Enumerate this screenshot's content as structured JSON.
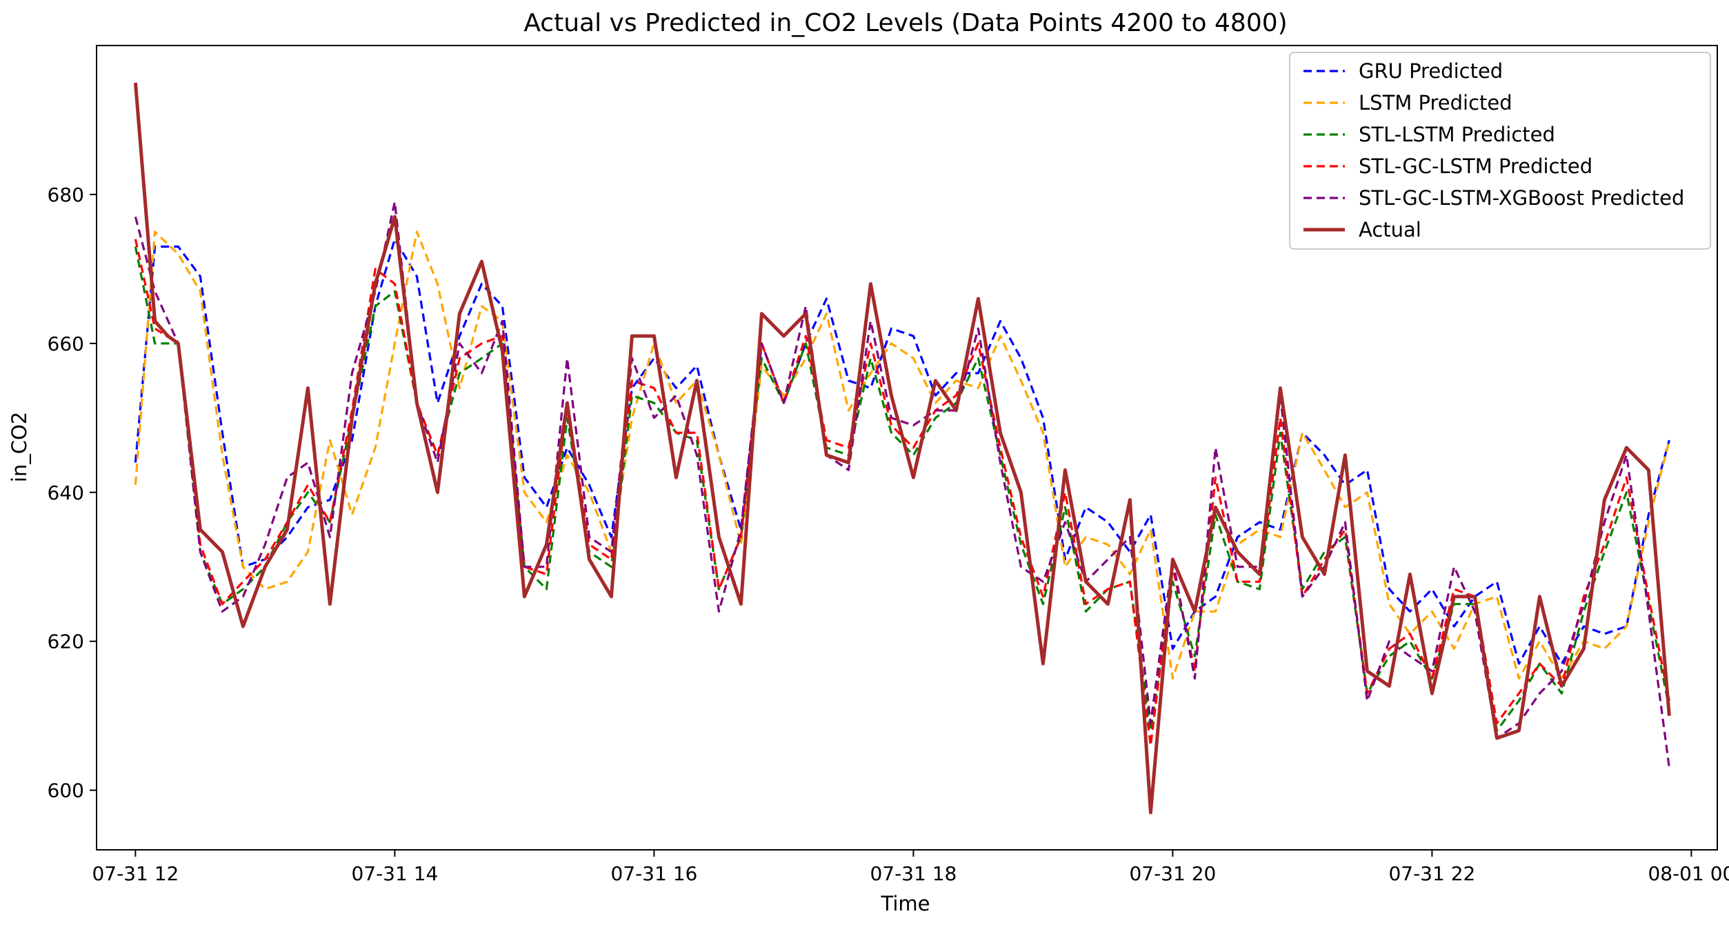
{
  "chart_data": {
    "type": "line",
    "title": "Actual vs Predicted in_CO2 Levels (Data Points 4200 to 4800)",
    "xlabel": "Time",
    "ylabel": "in_CO2",
    "xlim": [
      11.7,
      24.2
    ],
    "ylim": [
      592,
      700
    ],
    "x_ticks": [
      12,
      14,
      16,
      18,
      20,
      22,
      24
    ],
    "x_tick_labels": [
      "07-31 12",
      "07-31 14",
      "07-31 16",
      "07-31 18",
      "07-31 20",
      "07-31 22",
      "08-01 00"
    ],
    "y_ticks": [
      600,
      620,
      640,
      660,
      680
    ],
    "y_tick_labels": [
      "600",
      "620",
      "640",
      "660",
      "680"
    ],
    "grid": false,
    "legend_position": "top-right",
    "x_unit_note": "x values are hours on 2024-07-31 (24 = 08-01 00)",
    "series": [
      {
        "name": "GRU Predicted",
        "color": "#0000ff",
        "style": "dashed",
        "x": [
          12.0,
          12.15,
          12.33,
          12.5,
          12.67,
          12.83,
          13.0,
          13.17,
          13.33,
          13.5,
          13.67,
          13.85,
          14.0,
          14.17,
          14.33,
          14.5,
          14.67,
          14.83,
          15.0,
          15.17,
          15.33,
          15.5,
          15.67,
          15.83,
          16.0,
          16.17,
          16.33,
          16.5,
          16.67,
          16.83,
          17.0,
          17.17,
          17.33,
          17.5,
          17.67,
          17.83,
          18.0,
          18.17,
          18.33,
          18.5,
          18.67,
          18.83,
          19.0,
          19.17,
          19.33,
          19.5,
          19.67,
          19.83,
          20.0,
          20.17,
          20.33,
          20.5,
          20.67,
          20.83,
          21.0,
          21.17,
          21.33,
          21.5,
          21.67,
          21.83,
          22.0,
          22.17,
          22.33,
          22.5,
          22.67,
          22.83,
          23.0,
          23.17,
          23.33,
          23.5,
          23.67,
          23.83
        ],
        "y": [
          644,
          673,
          673,
          669,
          648,
          630,
          631,
          634,
          638,
          639,
          647,
          665,
          674,
          669,
          652,
          661,
          668,
          665,
          642,
          638,
          646,
          641,
          634,
          654,
          658,
          654,
          657,
          645,
          635,
          660,
          652,
          660,
          666,
          655,
          654,
          662,
          661,
          653,
          656,
          656,
          663,
          658,
          650,
          631,
          638,
          636,
          632,
          637,
          619,
          624,
          626,
          634,
          636,
          635,
          648,
          645,
          641,
          643,
          627,
          624,
          627,
          622,
          626,
          628,
          617,
          622,
          617,
          622,
          621,
          622,
          637,
          647
        ]
      },
      {
        "name": "LSTM Predicted",
        "color": "#ffa500",
        "style": "dashed",
        "x": [
          12.0,
          12.15,
          12.33,
          12.5,
          12.67,
          12.83,
          13.0,
          13.17,
          13.33,
          13.5,
          13.67,
          13.85,
          14.0,
          14.17,
          14.33,
          14.5,
          14.67,
          14.83,
          15.0,
          15.17,
          15.33,
          15.5,
          15.67,
          15.83,
          16.0,
          16.17,
          16.33,
          16.5,
          16.67,
          16.83,
          17.0,
          17.17,
          17.33,
          17.5,
          17.67,
          17.83,
          18.0,
          18.17,
          18.33,
          18.5,
          18.67,
          18.83,
          19.0,
          19.17,
          19.33,
          19.5,
          19.67,
          19.83,
          20.0,
          20.17,
          20.33,
          20.5,
          20.67,
          20.83,
          21.0,
          21.17,
          21.33,
          21.5,
          21.67,
          21.83,
          22.0,
          22.17,
          22.33,
          22.5,
          22.67,
          22.83,
          23.0,
          23.17,
          23.33,
          23.5,
          23.67,
          23.83
        ],
        "y": [
          641,
          675,
          672,
          667,
          645,
          630,
          627,
          628,
          632,
          647,
          637,
          646,
          660,
          675,
          668,
          654,
          665,
          663,
          640,
          636,
          645,
          640,
          632,
          650,
          660,
          652,
          655,
          645,
          633,
          657,
          653,
          658,
          664,
          651,
          656,
          660,
          658,
          652,
          655,
          654,
          661,
          655,
          648,
          630,
          634,
          633,
          629,
          635,
          615,
          624,
          624,
          633,
          635,
          634,
          648,
          643,
          638,
          640,
          625,
          621,
          624,
          619,
          625,
          626,
          615,
          620,
          615,
          620,
          619,
          622,
          636,
          647
        ]
      },
      {
        "name": "STL-LSTM Predicted",
        "color": "#008000",
        "style": "dashed",
        "x": [
          12.0,
          12.15,
          12.33,
          12.5,
          12.67,
          12.83,
          13.0,
          13.17,
          13.33,
          13.5,
          13.67,
          13.85,
          14.0,
          14.17,
          14.33,
          14.5,
          14.67,
          14.83,
          15.0,
          15.17,
          15.33,
          15.5,
          15.67,
          15.83,
          16.0,
          16.17,
          16.33,
          16.5,
          16.67,
          16.83,
          17.0,
          17.17,
          17.33,
          17.5,
          17.67,
          17.83,
          18.0,
          18.17,
          18.33,
          18.5,
          18.67,
          18.83,
          19.0,
          19.17,
          19.33,
          19.5,
          19.67,
          19.83,
          20.0,
          20.17,
          20.33,
          20.5,
          20.67,
          20.83,
          21.0,
          21.17,
          21.33,
          21.5,
          21.67,
          21.83,
          22.0,
          22.17,
          22.33,
          22.5,
          22.67,
          22.83,
          23.0,
          23.17,
          23.33,
          23.5,
          23.67,
          23.83
        ],
        "y": [
          673,
          660,
          660,
          632,
          625,
          627,
          630,
          636,
          640,
          636,
          650,
          665,
          667,
          652,
          645,
          656,
          658,
          660,
          630,
          627,
          650,
          632,
          630,
          653,
          652,
          648,
          647,
          627,
          634,
          658,
          652,
          660,
          646,
          645,
          658,
          648,
          645,
          650,
          652,
          658,
          645,
          633,
          625,
          638,
          624,
          627,
          628,
          608,
          628,
          618,
          637,
          628,
          627,
          648,
          627,
          632,
          634,
          613,
          618,
          620,
          615,
          625,
          625,
          608,
          612,
          617,
          613,
          624,
          632,
          640,
          625,
          611
        ]
      },
      {
        "name": "STL-GC-LSTM Predicted",
        "color": "#ff0000",
        "style": "dashed",
        "x": [
          12.0,
          12.15,
          12.33,
          12.5,
          12.67,
          12.83,
          13.0,
          13.17,
          13.33,
          13.5,
          13.67,
          13.85,
          14.0,
          14.17,
          14.33,
          14.5,
          14.67,
          14.83,
          15.0,
          15.17,
          15.33,
          15.5,
          15.67,
          15.83,
          16.0,
          16.17,
          16.33,
          16.5,
          16.67,
          16.83,
          17.0,
          17.17,
          17.33,
          17.5,
          17.67,
          17.83,
          18.0,
          18.17,
          18.33,
          18.5,
          18.67,
          18.83,
          19.0,
          19.17,
          19.33,
          19.5,
          19.67,
          19.83,
          20.0,
          20.17,
          20.33,
          20.5,
          20.67,
          20.83,
          21.0,
          21.17,
          21.33,
          21.5,
          21.67,
          21.83,
          22.0,
          22.17,
          22.33,
          22.5,
          22.67,
          22.83,
          23.0,
          23.17,
          23.33,
          23.5,
          23.67,
          23.83
        ],
        "y": [
          674,
          662,
          660,
          633,
          625,
          628,
          631,
          636,
          641,
          636,
          651,
          670,
          668,
          652,
          645,
          658,
          660,
          661,
          630,
          629,
          652,
          633,
          631,
          655,
          654,
          648,
          648,
          627,
          634,
          660,
          652,
          661,
          647,
          646,
          660,
          649,
          646,
          651,
          653,
          660,
          646,
          634,
          626,
          640,
          625,
          627,
          628,
          606,
          630,
          616,
          642,
          628,
          628,
          650,
          626,
          631,
          635,
          613,
          619,
          621,
          615,
          627,
          626,
          609,
          613,
          617,
          614,
          626,
          633,
          642,
          626,
          612
        ]
      },
      {
        "name": "STL-GC-LSTM-XGBoost Predicted",
        "color": "#800080",
        "style": "dashed",
        "x": [
          12.0,
          12.15,
          12.33,
          12.5,
          12.67,
          12.83,
          13.0,
          13.17,
          13.33,
          13.5,
          13.67,
          13.85,
          14.0,
          14.17,
          14.33,
          14.5,
          14.67,
          14.83,
          15.0,
          15.17,
          15.33,
          15.5,
          15.67,
          15.83,
          16.0,
          16.17,
          16.33,
          16.5,
          16.67,
          16.83,
          17.0,
          17.17,
          17.33,
          17.5,
          17.67,
          17.83,
          18.0,
          18.17,
          18.33,
          18.5,
          18.67,
          18.83,
          19.0,
          19.17,
          19.33,
          19.5,
          19.67,
          19.83,
          20.0,
          20.17,
          20.33,
          20.5,
          20.67,
          20.83,
          21.0,
          21.17,
          21.33,
          21.5,
          21.67,
          21.83,
          22.0,
          22.17,
          22.33,
          22.5,
          22.67,
          22.83,
          23.0,
          23.17,
          23.33,
          23.5,
          23.67,
          23.83
        ],
        "y": [
          677,
          667,
          660,
          632,
          624,
          626,
          633,
          642,
          644,
          634,
          656,
          667,
          679,
          652,
          644,
          660,
          656,
          663,
          630,
          630,
          658,
          634,
          632,
          658,
          650,
          653,
          645,
          624,
          635,
          660,
          652,
          665,
          645,
          643,
          663,
          650,
          649,
          651,
          651,
          662,
          644,
          630,
          628,
          636,
          628,
          631,
          634,
          609,
          631,
          615,
          646,
          630,
          630,
          653,
          626,
          630,
          636,
          612,
          620,
          618,
          616,
          630,
          624,
          607,
          609,
          613,
          616,
          625,
          636,
          645,
          624,
          603
        ]
      },
      {
        "name": "Actual",
        "color": "#a52a2a",
        "style": "solid",
        "x": [
          12.0,
          12.15,
          12.25,
          12.33,
          12.5,
          12.67,
          12.83,
          13.0,
          13.17,
          13.33,
          13.5,
          13.67,
          13.85,
          14.0,
          14.17,
          14.33,
          14.5,
          14.67,
          14.83,
          15.0,
          15.17,
          15.33,
          15.5,
          15.67,
          15.83,
          16.0,
          16.17,
          16.33,
          16.5,
          16.67,
          16.83,
          17.0,
          17.17,
          17.33,
          17.5,
          17.67,
          17.83,
          18.0,
          18.17,
          18.33,
          18.5,
          18.67,
          18.83,
          19.0,
          19.17,
          19.33,
          19.5,
          19.67,
          19.83,
          20.0,
          20.17,
          20.33,
          20.5,
          20.67,
          20.83,
          21.0,
          21.17,
          21.33,
          21.5,
          21.67,
          21.83,
          22.0,
          22.17,
          22.33,
          22.5,
          22.67,
          22.83,
          23.0,
          23.17,
          23.33,
          23.5,
          23.67,
          23.83
        ],
        "y": [
          695,
          663,
          661,
          660,
          635,
          632,
          622,
          630,
          635,
          654,
          625,
          650,
          668,
          677,
          652,
          640,
          664,
          671,
          659,
          626,
          633,
          652,
          631,
          626,
          661,
          661,
          642,
          655,
          634,
          625,
          664,
          661,
          664,
          645,
          644,
          668,
          653,
          642,
          655,
          651,
          666,
          648,
          640,
          617,
          643,
          628,
          625,
          639,
          597,
          631,
          624,
          638,
          632,
          629,
          654,
          634,
          629,
          645,
          616,
          614,
          629,
          613,
          626,
          626,
          607,
          608,
          626,
          614,
          619,
          639,
          646,
          643,
          610
        ]
      }
    ]
  }
}
